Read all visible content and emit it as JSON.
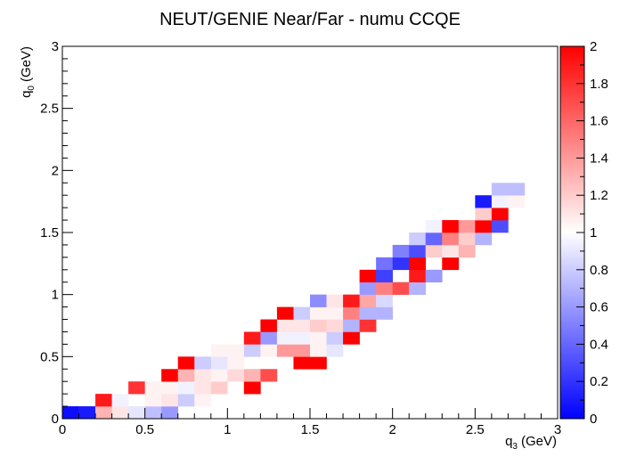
{
  "chart_data": {
    "type": "heatmap",
    "title": "NEUT/GENIE Near/Far - numu CCQE",
    "xlabel": {
      "main": "q",
      "sub": "3",
      "unit": "(GeV)"
    },
    "ylabel": {
      "main": "q",
      "sub": "0",
      "unit": "(GeV)"
    },
    "xlim": [
      0,
      3
    ],
    "ylim": [
      0,
      3
    ],
    "zlim": [
      0,
      2
    ],
    "bin_width": 0.1,
    "x_ticks": [
      "0",
      "0.5",
      "1",
      "1.5",
      "2",
      "2.5",
      "3"
    ],
    "y_ticks": [
      "0",
      "0.5",
      "1",
      "1.5",
      "2",
      "2.5",
      "3"
    ],
    "z_ticks": [
      "0",
      "0.2",
      "0.4",
      "0.6",
      "0.8",
      "1",
      "1.2",
      "1.4",
      "1.6",
      "1.8",
      "2"
    ],
    "colorscale": [
      "#0000ff",
      "#ffffff",
      "#ff0000"
    ],
    "cells": [
      [
        0.05,
        0.05,
        0.05
      ],
      [
        0.15,
        0.05,
        0.1
      ],
      [
        0.25,
        0.05,
        1.3
      ],
      [
        0.35,
        0.05,
        1.1
      ],
      [
        0.45,
        0.05,
        0.9
      ],
      [
        0.55,
        0.05,
        0.75
      ],
      [
        0.65,
        0.05,
        0.6
      ],
      [
        0.25,
        0.15,
        1.9
      ],
      [
        0.35,
        0.15,
        0.95
      ],
      [
        0.55,
        0.15,
        1.05
      ],
      [
        0.65,
        0.15,
        1.1
      ],
      [
        0.75,
        0.15,
        0.8
      ],
      [
        0.85,
        0.15,
        1.05
      ],
      [
        0.45,
        0.25,
        1.8
      ],
      [
        0.55,
        0.25,
        1.05
      ],
      [
        0.65,
        0.25,
        1.05
      ],
      [
        0.75,
        0.25,
        0.95
      ],
      [
        0.85,
        0.25,
        1.1
      ],
      [
        0.95,
        0.25,
        1.2
      ],
      [
        1.15,
        0.25,
        2.0
      ],
      [
        0.65,
        0.35,
        2.0
      ],
      [
        0.75,
        0.35,
        1.3
      ],
      [
        0.85,
        0.35,
        1.1
      ],
      [
        0.95,
        0.35,
        1.05
      ],
      [
        1.05,
        0.35,
        1.15
      ],
      [
        1.15,
        0.35,
        1.3
      ],
      [
        1.25,
        0.35,
        1.7
      ],
      [
        0.75,
        0.45,
        2.0
      ],
      [
        0.85,
        0.45,
        0.8
      ],
      [
        0.95,
        0.45,
        0.9
      ],
      [
        1.05,
        0.45,
        1.05
      ],
      [
        1.45,
        0.45,
        2.0
      ],
      [
        1.55,
        0.45,
        2.0
      ],
      [
        0.95,
        0.55,
        1.05
      ],
      [
        1.05,
        0.55,
        1.05
      ],
      [
        1.15,
        0.55,
        0.8
      ],
      [
        1.25,
        0.55,
        1.05
      ],
      [
        1.35,
        0.55,
        1.4
      ],
      [
        1.45,
        0.55,
        1.4
      ],
      [
        1.55,
        0.55,
        1.05
      ],
      [
        1.65,
        0.55,
        0.9
      ],
      [
        1.15,
        0.65,
        1.9
      ],
      [
        1.25,
        0.65,
        0.6
      ],
      [
        1.35,
        0.65,
        0.95
      ],
      [
        1.45,
        0.65,
        0.95
      ],
      [
        1.55,
        0.65,
        1.05
      ],
      [
        1.65,
        0.65,
        0.8
      ],
      [
        1.75,
        0.65,
        2.0
      ],
      [
        1.25,
        0.75,
        2.0
      ],
      [
        1.35,
        0.75,
        1.1
      ],
      [
        1.45,
        0.75,
        1.1
      ],
      [
        1.55,
        0.75,
        1.2
      ],
      [
        1.65,
        0.75,
        1.15
      ],
      [
        1.75,
        0.75,
        0.7
      ],
      [
        1.85,
        0.75,
        1.8
      ],
      [
        1.35,
        0.85,
        2.0
      ],
      [
        1.45,
        0.85,
        0.8
      ],
      [
        1.55,
        0.85,
        1.05
      ],
      [
        1.65,
        0.85,
        1.05
      ],
      [
        1.75,
        0.85,
        1.5
      ],
      [
        1.85,
        0.85,
        0.7
      ],
      [
        1.95,
        0.85,
        0.7
      ],
      [
        1.55,
        0.95,
        0.55
      ],
      [
        1.65,
        0.95,
        1.1
      ],
      [
        1.75,
        0.95,
        1.9
      ],
      [
        1.85,
        0.95,
        1.35
      ],
      [
        1.95,
        0.95,
        0.85
      ],
      [
        1.85,
        1.05,
        0.6
      ],
      [
        1.95,
        1.05,
        1.5
      ],
      [
        2.05,
        1.05,
        1.7
      ],
      [
        2.15,
        1.05,
        0.7
      ],
      [
        1.85,
        1.15,
        2.0
      ],
      [
        1.95,
        1.15,
        0.25
      ],
      [
        2.15,
        1.15,
        1.9
      ],
      [
        2.25,
        1.15,
        0.6
      ],
      [
        1.95,
        1.25,
        0.45
      ],
      [
        2.05,
        1.25,
        0.2
      ],
      [
        2.15,
        1.25,
        2.0
      ],
      [
        2.35,
        1.25,
        2.0
      ],
      [
        2.05,
        1.35,
        0.5
      ],
      [
        2.15,
        1.35,
        0.3
      ],
      [
        2.25,
        1.35,
        1.2
      ],
      [
        2.35,
        1.35,
        1.1
      ],
      [
        2.45,
        1.35,
        1.3
      ],
      [
        2.15,
        1.45,
        0.8
      ],
      [
        2.25,
        1.45,
        0.4
      ],
      [
        2.35,
        1.45,
        1.5
      ],
      [
        2.45,
        1.45,
        1.2
      ],
      [
        2.55,
        1.45,
        0.7
      ],
      [
        2.25,
        1.55,
        0.95
      ],
      [
        2.35,
        1.55,
        2.0
      ],
      [
        2.45,
        1.55,
        1.4
      ],
      [
        2.55,
        1.55,
        2.0
      ],
      [
        2.65,
        1.55,
        0.3
      ],
      [
        2.55,
        1.65,
        1.2
      ],
      [
        2.65,
        1.65,
        2.0
      ],
      [
        2.55,
        1.75,
        0.1
      ],
      [
        2.65,
        1.75,
        0.95
      ],
      [
        2.75,
        1.75,
        1.05
      ],
      [
        2.65,
        1.85,
        0.75
      ],
      [
        2.75,
        1.85,
        0.75
      ]
    ]
  }
}
